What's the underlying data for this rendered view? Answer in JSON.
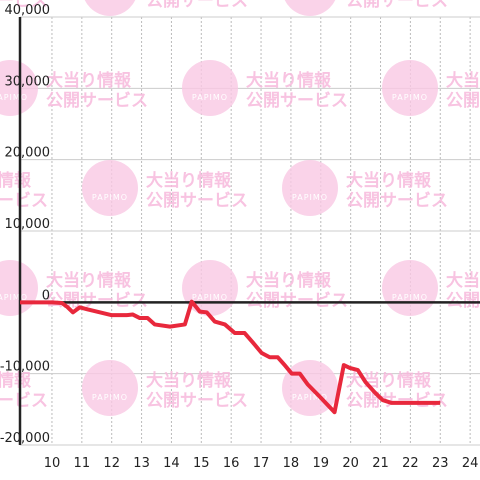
{
  "chart_data": {
    "type": "line",
    "x": [
      8.93,
      10.0,
      10.33,
      10.5,
      10.7,
      10.93,
      11.2,
      11.6,
      12.0,
      12.5,
      12.7,
      12.94,
      13.2,
      13.44,
      13.95,
      14.45,
      14.68,
      14.95,
      15.18,
      15.45,
      15.79,
      16.12,
      16.45,
      16.72,
      17.02,
      17.29,
      17.56,
      17.79,
      18.03,
      18.3,
      18.56,
      18.96,
      19.46,
      19.77,
      19.97,
      20.24,
      20.5,
      20.8,
      21.07,
      21.37,
      23.0
    ],
    "series": [
      {
        "color": "#e8283c",
        "values": [
          0,
          0,
          -100,
          -600,
          -1400,
          -700,
          -1000,
          -1400,
          -1800,
          -1800,
          -1700,
          -2200,
          -2200,
          -3100,
          -3400,
          -3100,
          100,
          -1300,
          -1400,
          -2700,
          -3100,
          -4300,
          -4300,
          -5600,
          -7100,
          -7700,
          -7700,
          -8800,
          -10000,
          -10000,
          -11500,
          -13200,
          -15400,
          -8800,
          -9200,
          -9500,
          -11200,
          -12600,
          -13700,
          -14100,
          -14100
        ]
      }
    ],
    "xlim": [
      8.93,
      24.33
    ],
    "xticks": [
      10,
      11,
      12,
      13,
      14,
      15,
      16,
      17,
      18,
      19,
      20,
      21,
      22,
      23,
      24
    ],
    "ylim": [
      -20000,
      40000
    ],
    "yticks": [
      {
        "value": -20000,
        "label": "-20,000"
      },
      {
        "value": -10000,
        "label": "-10,000"
      },
      {
        "value": 0,
        "label": "0"
      },
      {
        "value": 10000,
        "label": "10,000"
      },
      {
        "value": 20000,
        "label": "20,000"
      },
      {
        "value": 30000,
        "label": "30,000"
      },
      {
        "value": 40000,
        "label": "40,000"
      }
    ],
    "grid": true
  },
  "watermark": {
    "logo": "PAPIMO",
    "line1": "大当り情報",
    "line2": "公開サービス"
  }
}
